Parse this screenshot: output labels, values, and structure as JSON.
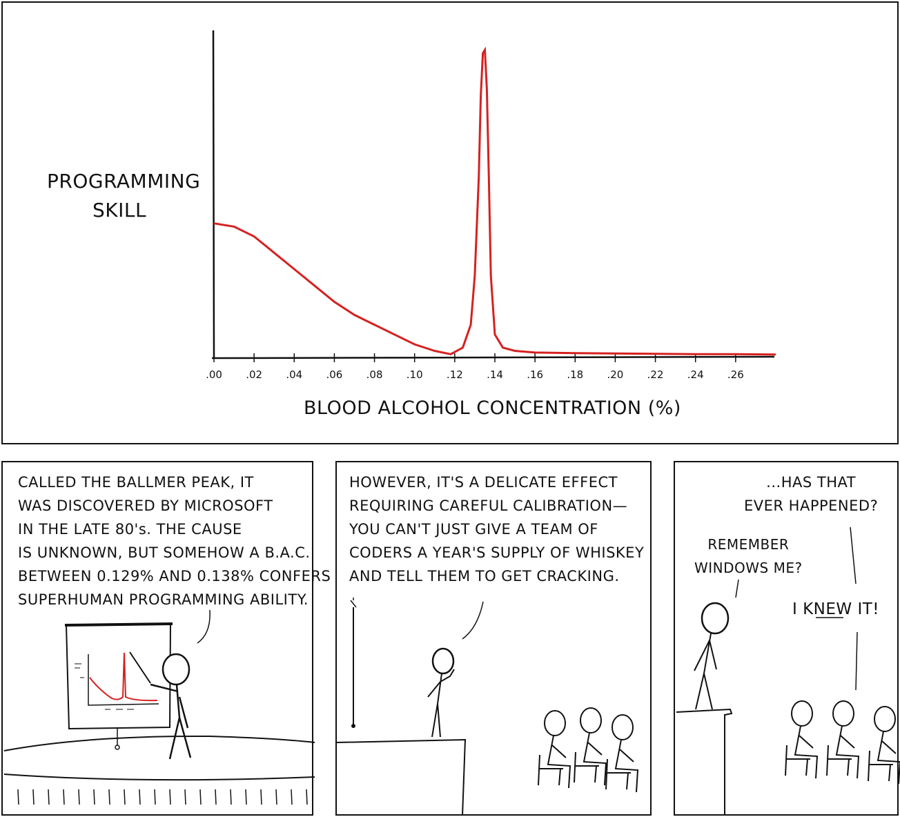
{
  "top_panel": {
    "ylabel_line1": "PROGRAMMING",
    "ylabel_line2": "SKILL",
    "xlabel": "BLOOD ALCOHOL CONCENTRATION (%)"
  },
  "chart_data": {
    "type": "line",
    "xlabel": "BLOOD ALCOHOL CONCENTRATION (%)",
    "ylabel": "PROGRAMMING SKILL",
    "x_ticks": [
      ".00",
      ".02",
      ".04",
      ".06",
      ".08",
      ".10",
      ".12",
      ".14",
      ".16",
      ".18",
      ".20",
      ".22",
      ".24",
      ".26"
    ],
    "xlim": [
      0,
      0.28
    ],
    "ylim": [
      0,
      1
    ],
    "series": [
      {
        "color": "#d62020",
        "x": [
          0.0,
          0.01,
          0.02,
          0.03,
          0.04,
          0.05,
          0.06,
          0.07,
          0.08,
          0.09,
          0.1,
          0.11,
          0.118,
          0.124,
          0.128,
          0.13,
          0.132,
          0.133,
          0.134,
          0.135,
          0.136,
          0.137,
          0.138,
          0.14,
          0.144,
          0.15,
          0.16,
          0.18,
          0.2,
          0.22,
          0.24,
          0.26,
          0.28
        ],
        "y": [
          0.41,
          0.4,
          0.37,
          0.32,
          0.27,
          0.22,
          0.17,
          0.13,
          0.1,
          0.07,
          0.04,
          0.02,
          0.01,
          0.03,
          0.1,
          0.25,
          0.55,
          0.8,
          0.93,
          0.94,
          0.82,
          0.55,
          0.25,
          0.07,
          0.03,
          0.02,
          0.015,
          0.013,
          0.012,
          0.011,
          0.01,
          0.01,
          0.009
        ]
      }
    ]
  },
  "panels": {
    "p1_caption": "CALLED THE BALLMER PEAK, IT\nWAS DISCOVERED BY MICROSOFT\nIN THE LATE 80's. THE CAUSE\nIS UNKNOWN, BUT SOMEHOW A B.A.C.\nBETWEEN 0.129% AND 0.138% CONFERS\nSUPERHUMAN PROGRAMMING ABILITY.",
    "p2_caption": "HOWEVER, IT'S A DELICATE EFFECT\nREQUIRING CAREFUL CALIBRATION—\nYOU CAN'T JUST GIVE A TEAM OF\nCODERS A YEAR'S SUPPLY OF WHISKEY\nAND TELL THEM TO GET CRACKING.",
    "p3_question": "...HAS THAT\nEVER HAPPENED?",
    "p3_speaker": "REMEMBER\nWINDOWS ME?",
    "p3_reply": "I KNEW IT!"
  },
  "colors": {
    "ink": "#111111",
    "curve": "#d62020",
    "background": "#ffffff"
  }
}
